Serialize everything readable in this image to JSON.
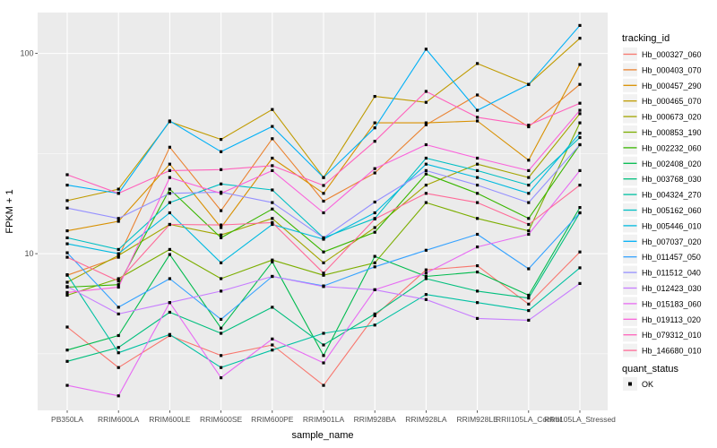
{
  "figure": {
    "background": "#FFFFFF",
    "panel_bg": "#EBEBEB",
    "grid_color": "#FFFFFF",
    "axis_text_color": "#4D4D4D",
    "tick_color": "#333333",
    "point_color": "#000000"
  },
  "chart_data": {
    "type": "line",
    "title": "",
    "xlabel": "sample_name",
    "ylabel": "FPKM + 1",
    "y_scale": "log10",
    "ylim": [
      1.65,
      160
    ],
    "y_tick_values": [
      10,
      100
    ],
    "y_tick_labels": [
      "10",
      "100"
    ],
    "y_minor_values": [
      3.1623,
      31.623
    ],
    "grid": true,
    "legend_position": "right",
    "legend_title": "tracking_id",
    "legend2_title": "quant_status",
    "legend2_items": [
      "OK"
    ],
    "marker": "black-square",
    "categories": [
      "PB350LA",
      "RRIM600LA",
      "RRIM600LE",
      "RRIM600SE",
      "RRIM600PE",
      "RRIM901LA",
      "RRIM928BA",
      "RRIM928LA",
      "RRIM928LE",
      "RRII105LA_Control",
      "RRII105LA_Stressed"
    ],
    "series": [
      {
        "name": "Hb_000327_060",
        "color": "#F8766D",
        "values": [
          4.3,
          2.7,
          3.9,
          3.1,
          3.5,
          2.2,
          4.9,
          8.3,
          8.7,
          5.6,
          10.2
        ]
      },
      {
        "name": "Hb_000403_070",
        "color": "#EA8331",
        "values": [
          7.8,
          9.6,
          34,
          16.4,
          37.5,
          18.3,
          25.3,
          44,
          62,
          43,
          70
        ]
      },
      {
        "name": "Hb_000457_290",
        "color": "#D89000",
        "values": [
          13,
          14.5,
          28,
          13.5,
          30,
          20,
          45,
          45,
          46,
          29.3,
          88
        ]
      },
      {
        "name": "Hb_000465_070",
        "color": "#C09B00",
        "values": [
          18.4,
          21,
          45.6,
          37.2,
          52.5,
          24,
          61,
          57,
          89,
          70,
          119
        ]
      },
      {
        "name": "Hb_000673_020",
        "color": "#A3A500",
        "values": [
          7.2,
          9.8,
          14,
          12.4,
          15,
          9,
          13.5,
          22,
          28,
          24,
          50
        ]
      },
      {
        "name": "Hb_000853_190",
        "color": "#7CAE00",
        "values": [
          6.2,
          7.5,
          10.5,
          7.5,
          9.3,
          7.8,
          9,
          18,
          15,
          13,
          45
        ]
      },
      {
        "name": "Hb_002232_060",
        "color": "#39B600",
        "values": [
          6.8,
          7,
          21,
          12,
          16.7,
          10.2,
          12.8,
          25,
          20,
          15,
          35
        ]
      },
      {
        "name": "Hb_002408_020",
        "color": "#00BB4E",
        "values": [
          3.3,
          3.9,
          9.9,
          4.25,
          9.1,
          3.1,
          9.7,
          7.7,
          8.1,
          6.2,
          17
        ]
      },
      {
        "name": "Hb_003768_030",
        "color": "#00BF7D",
        "values": [
          2.9,
          3.4,
          5.1,
          4,
          5.4,
          3.5,
          5,
          7.5,
          6.5,
          6,
          16
        ]
      },
      {
        "name": "Hb_004324_270",
        "color": "#00C1A3",
        "values": [
          7.85,
          3.2,
          3.95,
          2.7,
          3.3,
          4,
          4.4,
          6.25,
          5.7,
          5.2,
          8.5
        ]
      },
      {
        "name": "Hb_005162_060",
        "color": "#00BFC4",
        "values": [
          12,
          10.5,
          18,
          22.3,
          20.8,
          12,
          15,
          30,
          26,
          22,
          38
        ]
      },
      {
        "name": "Hb_005446_010",
        "color": "#00BAE0",
        "values": [
          11.2,
          10,
          16,
          9,
          14,
          11.8,
          16,
          28,
          24,
          20,
          40
        ]
      },
      {
        "name": "Hb_007037_020",
        "color": "#00B0F6",
        "values": [
          22,
          20,
          46,
          32.3,
          43.2,
          24,
          42.5,
          105,
          52,
          70,
          138
        ]
      },
      {
        "name": "Hb_011457_050",
        "color": "#35A2FF",
        "values": [
          10.1,
          5.4,
          7.5,
          4.7,
          7.7,
          6.9,
          8.6,
          10.4,
          12.5,
          8.4,
          16
        ]
      },
      {
        "name": "Hb_011512_040",
        "color": "#9590FF",
        "values": [
          16.9,
          15,
          20,
          20.3,
          18,
          12,
          18.1,
          26,
          22,
          18,
          35
        ]
      },
      {
        "name": "Hb_012423_030",
        "color": "#C77CFF",
        "values": [
          6.85,
          5,
          5.7,
          6.5,
          7.7,
          6.85,
          6.6,
          5.9,
          4.75,
          4.65,
          7.1
        ]
      },
      {
        "name": "Hb_015183_060",
        "color": "#E76BF3",
        "values": [
          2.2,
          1.95,
          5.7,
          2.4,
          3.75,
          2.85,
          6.6,
          8,
          10.8,
          12.5,
          26
        ]
      },
      {
        "name": "Hb_019113_020",
        "color": "#FA62DB",
        "values": [
          6.4,
          6.8,
          24,
          20,
          26,
          16,
          26.6,
          35,
          30,
          26,
          52
        ]
      },
      {
        "name": "Hb_079312_010",
        "color": "#FF62BC",
        "values": [
          24.8,
          20,
          26,
          26.3,
          27.5,
          21.9,
          36.4,
          64.6,
          48,
          43.8,
          56.4
        ]
      },
      {
        "name": "Hb_146680_010",
        "color": "#FF6A98",
        "values": [
          9.6,
          7.3,
          14,
          13.9,
          14.3,
          8,
          14.9,
          20,
          18,
          14,
          22
        ]
      }
    ]
  }
}
